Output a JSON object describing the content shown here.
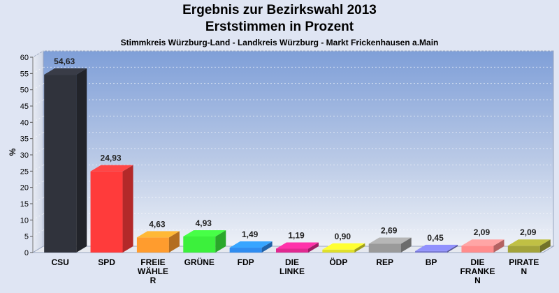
{
  "chart_data": {
    "type": "bar",
    "title": "Ergebnis zur Bezirkswahl 2013",
    "subtitle_line2": "Erststimmen in Prozent",
    "subtitle": "Stimmkreis Würzburg-Land - Landkreis Würzburg - Markt Frickenhausen a.Main",
    "ylabel": "%",
    "ylim": [
      0,
      60
    ],
    "yticks": [
      0,
      5,
      10,
      15,
      20,
      25,
      30,
      35,
      40,
      45,
      50,
      55,
      60
    ],
    "categories": [
      [
        "CSU"
      ],
      [
        "SPD"
      ],
      [
        "FREIE",
        "WÄHLE",
        "R"
      ],
      [
        "GRÜNE"
      ],
      [
        "FDP"
      ],
      [
        "DIE",
        "LINKE"
      ],
      [
        "ÖDP"
      ],
      [
        "REP"
      ],
      [
        "BP"
      ],
      [
        "DIE",
        "FRANKE",
        "N"
      ],
      [
        "PIRATE",
        "N"
      ]
    ],
    "values": [
      54.63,
      24.93,
      4.63,
      4.93,
      1.49,
      1.19,
      0.9,
      2.69,
      0.45,
      2.09,
      2.09
    ],
    "value_labels": [
      "54,63",
      "24,93",
      "4,63",
      "4,93",
      "1,49",
      "1,19",
      "0,90",
      "2,69",
      "0,45",
      "2,09",
      "2,09"
    ],
    "colors": [
      "#30333c",
      "#ff3b3b",
      "#ff9c2e",
      "#3cf03c",
      "#2f8cf0",
      "#e02a90",
      "#e0e02a",
      "#9a9a9a",
      "#7b7bd6",
      "#ff8c8c",
      "#a3a33a"
    ],
    "grid": true
  }
}
